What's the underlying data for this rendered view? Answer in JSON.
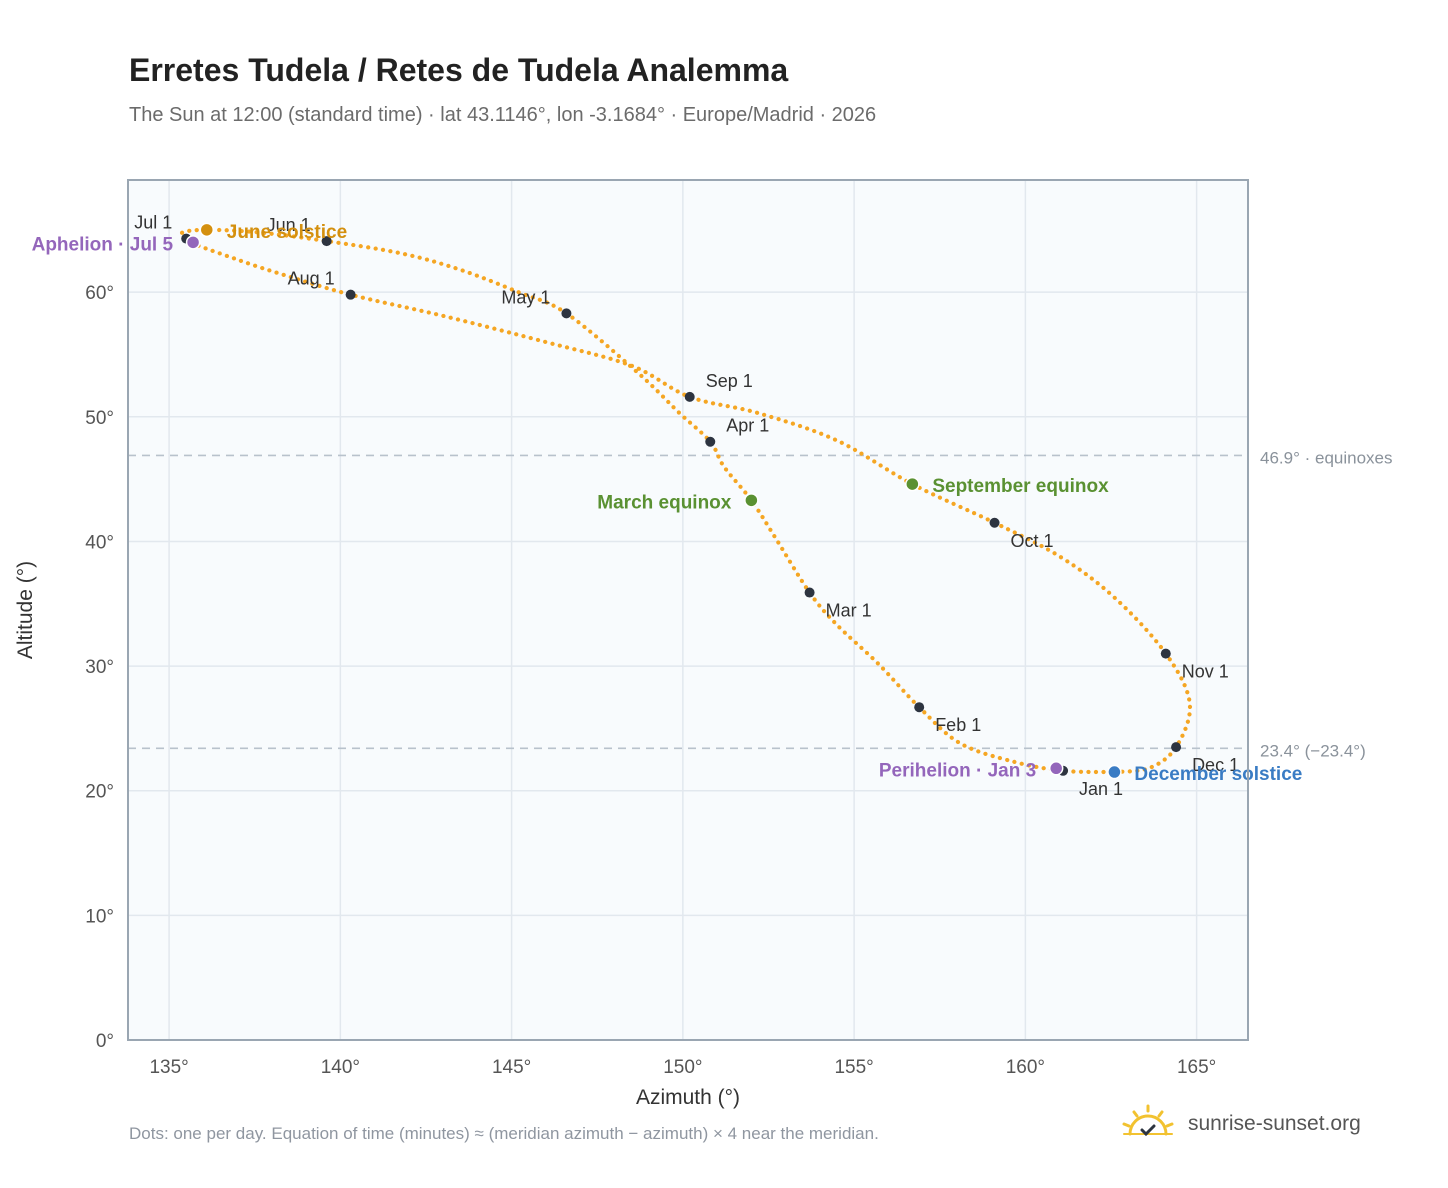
{
  "header": {
    "title": "Erretes Tudela / Retes de Tudela Analemma",
    "subtitle": "The Sun at 12:00 (standard time) · lat 43.1146°, lon -3.1684° · Europe/Madrid · 2026"
  },
  "footer": {
    "note": "Dots: one per day. Equation of time (minutes) ≈ (meridian azimuth − azimuth) × 4 near the meridian.",
    "brand": "sunrise-sunset.org"
  },
  "colors": {
    "analemma": "#f5a623",
    "month_dot": "#2d3440",
    "grid": "#e2e8ee",
    "plot_bg": "#f8fbfd",
    "frame": "#9aa6b2",
    "ref_line": "#b8c2cc",
    "solstice_june": "#d4900f",
    "solstice_december": "#3a7cc4",
    "equinox": "#5a9132",
    "apsis": "#9466bb",
    "logo": "#f2c230"
  },
  "chart_data": {
    "type": "scatter",
    "xlabel": "Azimuth (°)",
    "ylabel": "Altitude (°)",
    "xlim": [
      133.8,
      166.5
    ],
    "ylim": [
      0,
      69
    ],
    "xticks": [
      135,
      140,
      145,
      150,
      155,
      160,
      165
    ],
    "yticks": [
      0,
      10,
      20,
      30,
      40,
      50,
      60
    ],
    "tick_suffix": "°",
    "grid": true,
    "path_points": [
      [
        162.5,
        21.5
      ],
      [
        161.1,
        21.6
      ],
      [
        159.7,
        22.3
      ],
      [
        158.1,
        23.8
      ],
      [
        156.9,
        26.7
      ],
      [
        155.7,
        30.2
      ],
      [
        154.5,
        33.3
      ],
      [
        153.7,
        35.9
      ],
      [
        152.7,
        40.3
      ],
      [
        152.0,
        43.3
      ],
      [
        151.2,
        46.0
      ],
      [
        150.8,
        48.0
      ],
      [
        149.9,
        50.3
      ],
      [
        148.7,
        53.5
      ],
      [
        146.6,
        58.3
      ],
      [
        145.2,
        60.0
      ],
      [
        143.5,
        61.8
      ],
      [
        141.8,
        63.1
      ],
      [
        139.6,
        64.1
      ],
      [
        137.6,
        64.8
      ],
      [
        136.1,
        65.0
      ],
      [
        135.4,
        64.8
      ],
      [
        135.5,
        64.3
      ],
      [
        135.7,
        63.9
      ],
      [
        136.8,
        62.8
      ],
      [
        138.1,
        61.6
      ],
      [
        140.3,
        59.8
      ],
      [
        143.0,
        58.1
      ],
      [
        146.0,
        56.0
      ],
      [
        148.5,
        54.1
      ],
      [
        150.2,
        51.6
      ],
      [
        152.2,
        50.3
      ],
      [
        154.5,
        48.1
      ],
      [
        156.7,
        44.6
      ],
      [
        159.1,
        41.5
      ],
      [
        161.0,
        38.8
      ],
      [
        162.6,
        35.5
      ],
      [
        164.1,
        31.0
      ],
      [
        164.8,
        27.0
      ],
      [
        164.4,
        23.5
      ],
      [
        163.6,
        21.8
      ],
      [
        162.5,
        21.5
      ]
    ],
    "month_markers": [
      {
        "label": "Jan 1",
        "az": 161.1,
        "alt": 21.6
      },
      {
        "label": "Feb 1",
        "az": 156.9,
        "alt": 26.7
      },
      {
        "label": "Mar 1",
        "az": 153.7,
        "alt": 35.9
      },
      {
        "label": "Apr 1",
        "az": 150.8,
        "alt": 48.0
      },
      {
        "label": "May 1",
        "az": 146.6,
        "alt": 58.3
      },
      {
        "label": "Jun 1",
        "az": 139.6,
        "alt": 64.1
      },
      {
        "label": "Jul 1",
        "az": 135.5,
        "alt": 64.3
      },
      {
        "label": "Aug 1",
        "az": 140.3,
        "alt": 59.8
      },
      {
        "label": "Sep 1",
        "az": 150.2,
        "alt": 51.6
      },
      {
        "label": "Oct 1",
        "az": 159.1,
        "alt": 41.5
      },
      {
        "label": "Nov 1",
        "az": 164.1,
        "alt": 31.0
      },
      {
        "label": "Dec 1",
        "az": 164.4,
        "alt": 23.5
      }
    ],
    "events": [
      {
        "label": "June solstice",
        "az": 136.1,
        "alt": 65.0,
        "kind": "solstice_june",
        "side": "right"
      },
      {
        "label": "December solstice",
        "az": 162.6,
        "alt": 21.5,
        "kind": "solstice_december",
        "side": "right"
      },
      {
        "label": "March equinox",
        "az": 152.0,
        "alt": 43.3,
        "kind": "equinox",
        "side": "left"
      },
      {
        "label": "September equinox",
        "az": 156.7,
        "alt": 44.6,
        "kind": "equinox",
        "side": "right"
      },
      {
        "label": "Aphelion · Jul 5",
        "az": 135.7,
        "alt": 64.0,
        "kind": "apsis",
        "side": "left"
      },
      {
        "label": "Perihelion · Jan 3",
        "az": 160.9,
        "alt": 21.8,
        "kind": "apsis",
        "side": "left"
      }
    ],
    "reference_lines": [
      {
        "label": "46.9° · equinoxes",
        "alt": 46.9
      },
      {
        "label": "23.4° (−23.4°)",
        "alt": 23.4
      }
    ]
  }
}
